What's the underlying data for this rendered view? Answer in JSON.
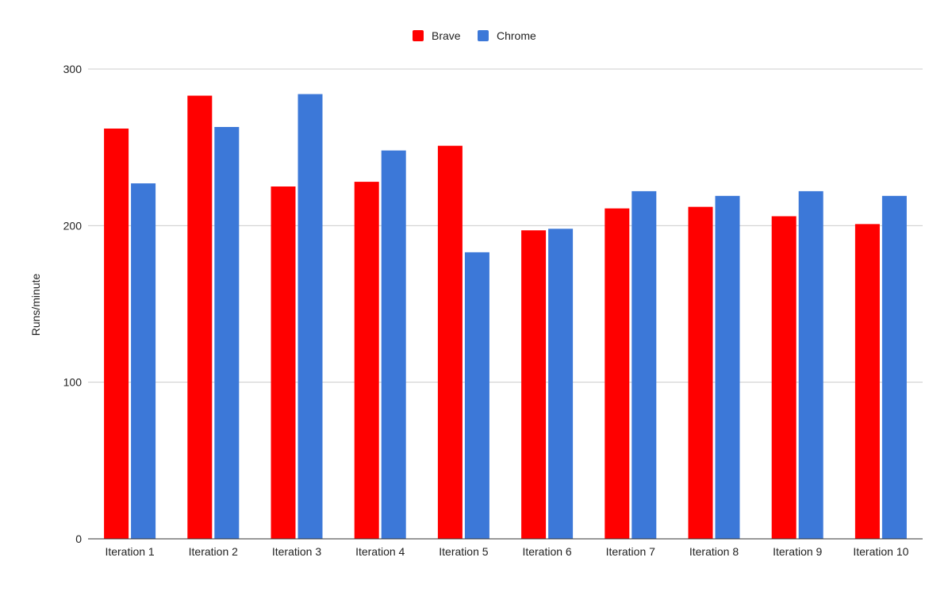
{
  "chart_data": {
    "type": "bar",
    "title": "",
    "xlabel": "",
    "ylabel": "Runs/minute",
    "ylim": [
      0,
      300
    ],
    "yticks": [
      0,
      100,
      200,
      300
    ],
    "grid": true,
    "legend_position": "top-center",
    "categories": [
      "Iteration 1",
      "Iteration 2",
      "Iteration 3",
      "Iteration 4",
      "Iteration 5",
      "Iteration 6",
      "Iteration 7",
      "Iteration 8",
      "Iteration 9",
      "Iteration 10"
    ],
    "series": [
      {
        "name": "Brave",
        "color": "#ff0000",
        "values": [
          262,
          283,
          225,
          228,
          251,
          197,
          211,
          212,
          206,
          201
        ]
      },
      {
        "name": "Chrome",
        "color": "#3c78d8",
        "values": [
          227,
          263,
          284,
          248,
          183,
          198,
          222,
          219,
          222,
          219
        ]
      }
    ]
  }
}
